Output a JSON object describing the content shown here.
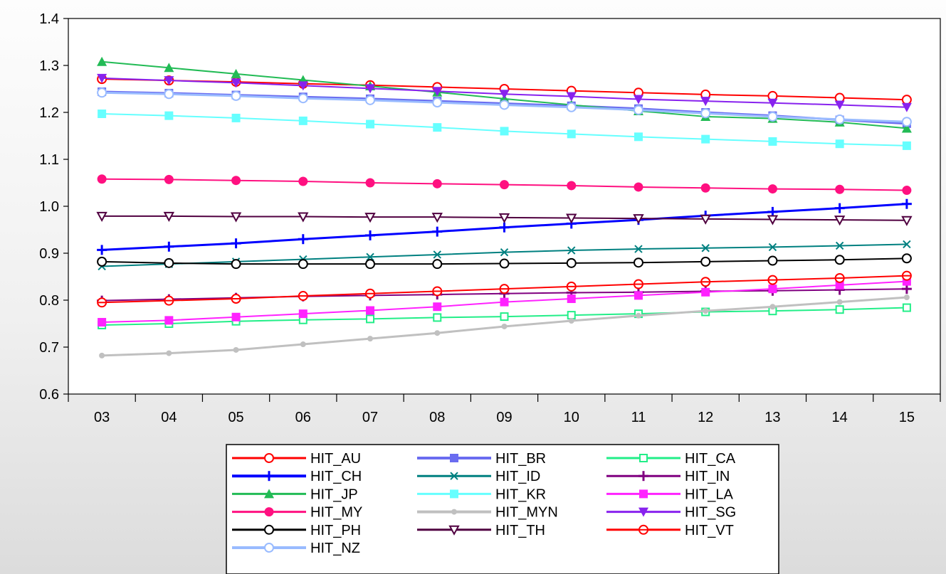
{
  "chart_data": {
    "type": "line",
    "title": "",
    "xlabel": "",
    "ylabel": "",
    "categories": [
      "03",
      "04",
      "05",
      "06",
      "07",
      "08",
      "09",
      "10",
      "11",
      "12",
      "13",
      "14",
      "15"
    ],
    "ylim": [
      0.6,
      1.4
    ],
    "yticks": [
      "0.6",
      "0.7",
      "0.8",
      "0.9",
      "1.0",
      "1.1",
      "1.2",
      "1.3",
      "1.4"
    ],
    "grid": false,
    "legend": {
      "placement": "bottom-center",
      "columns": 3
    },
    "series": [
      {
        "name": "HIT_AU",
        "color": "#ff0000",
        "marker": "circle-open",
        "width": 2,
        "values": [
          1.271,
          1.268,
          1.265,
          1.261,
          1.258,
          1.254,
          1.25,
          1.246,
          1.242,
          1.238,
          1.235,
          1.231,
          1.227
        ]
      },
      {
        "name": "HIT_BR",
        "color": "#6a6cf0",
        "marker": "square-filled",
        "width": 3,
        "values": [
          1.244,
          1.241,
          1.237,
          1.233,
          1.229,
          1.224,
          1.219,
          1.214,
          1.208,
          1.2,
          1.193,
          1.184,
          1.176
        ]
      },
      {
        "name": "HIT_CA",
        "color": "#22ee88",
        "marker": "square-open",
        "width": 2,
        "values": [
          0.747,
          0.75,
          0.755,
          0.758,
          0.76,
          0.763,
          0.765,
          0.768,
          0.771,
          0.775,
          0.777,
          0.78,
          0.784
        ]
      },
      {
        "name": "HIT_CH",
        "color": "#0000ff",
        "marker": "plus",
        "width": 3,
        "values": [
          0.907,
          0.914,
          0.921,
          0.93,
          0.938,
          0.946,
          0.955,
          0.963,
          0.971,
          0.98,
          0.988,
          0.996,
          1.005
        ]
      },
      {
        "name": "HIT_ID",
        "color": "#008080",
        "marker": "x",
        "width": 2,
        "values": [
          0.872,
          0.877,
          0.882,
          0.887,
          0.892,
          0.897,
          0.902,
          0.906,
          0.909,
          0.911,
          0.913,
          0.916,
          0.919
        ]
      },
      {
        "name": "HIT_IN",
        "color": "#800080",
        "marker": "plus",
        "width": 2,
        "values": [
          0.799,
          0.802,
          0.805,
          0.808,
          0.81,
          0.812,
          0.814,
          0.816,
          0.817,
          0.819,
          0.82,
          0.822,
          0.824
        ]
      },
      {
        "name": "HIT_JP",
        "color": "#22bb55",
        "marker": "triangle-filled",
        "width": 2,
        "values": [
          1.308,
          1.295,
          1.282,
          1.269,
          1.256,
          1.243,
          1.229,
          1.216,
          1.203,
          1.191,
          1.187,
          1.179,
          1.166
        ]
      },
      {
        "name": "HIT_KR",
        "color": "#66ffff",
        "marker": "square-filled",
        "width": 2,
        "values": [
          1.197,
          1.193,
          1.188,
          1.182,
          1.175,
          1.168,
          1.16,
          1.154,
          1.148,
          1.143,
          1.138,
          1.133,
          1.129
        ]
      },
      {
        "name": "HIT_LA",
        "color": "#ff22ff",
        "marker": "square-filled",
        "width": 2,
        "values": [
          0.753,
          0.757,
          0.764,
          0.771,
          0.778,
          0.786,
          0.796,
          0.803,
          0.81,
          0.817,
          0.824,
          0.832,
          0.84
        ]
      },
      {
        "name": "HIT_MY",
        "color": "#ff1080",
        "marker": "circle-filled",
        "width": 2,
        "values": [
          1.058,
          1.057,
          1.055,
          1.053,
          1.05,
          1.048,
          1.046,
          1.044,
          1.041,
          1.039,
          1.037,
          1.036,
          1.034
        ]
      },
      {
        "name": "HIT_MYN",
        "color": "#c0c0c0",
        "marker": "dot",
        "width": 3,
        "values": [
          0.682,
          0.687,
          0.694,
          0.706,
          0.718,
          0.73,
          0.744,
          0.756,
          0.767,
          0.777,
          0.786,
          0.796,
          0.806
        ]
      },
      {
        "name": "HIT_SG",
        "color": "#8822ee",
        "marker": "triangle-down-filled",
        "width": 2,
        "values": [
          1.273,
          1.268,
          1.263,
          1.257,
          1.251,
          1.245,
          1.239,
          1.234,
          1.228,
          1.224,
          1.22,
          1.216,
          1.211
        ]
      },
      {
        "name": "HIT_PH",
        "color": "#000000",
        "marker": "circle-open",
        "width": 2,
        "values": [
          0.882,
          0.879,
          0.877,
          0.877,
          0.877,
          0.877,
          0.878,
          0.879,
          0.88,
          0.882,
          0.884,
          0.886,
          0.889
        ]
      },
      {
        "name": "HIT_TH",
        "color": "#500040",
        "marker": "triangle-down-open",
        "width": 2,
        "values": [
          0.979,
          0.979,
          0.978,
          0.978,
          0.977,
          0.977,
          0.976,
          0.975,
          0.974,
          0.973,
          0.972,
          0.971,
          0.97
        ]
      },
      {
        "name": "HIT_VT",
        "color": "#ff0000",
        "marker": "circle-open-dash",
        "width": 2,
        "values": [
          0.795,
          0.799,
          0.803,
          0.809,
          0.814,
          0.819,
          0.824,
          0.829,
          0.834,
          0.839,
          0.843,
          0.847,
          0.852
        ]
      },
      {
        "name": "HIT_NZ",
        "color": "#99bbff",
        "marker": "circle-open",
        "width": 3,
        "values": [
          1.242,
          1.239,
          1.235,
          1.23,
          1.226,
          1.221,
          1.216,
          1.211,
          1.205,
          1.198,
          1.191,
          1.185,
          1.18
        ]
      }
    ]
  }
}
